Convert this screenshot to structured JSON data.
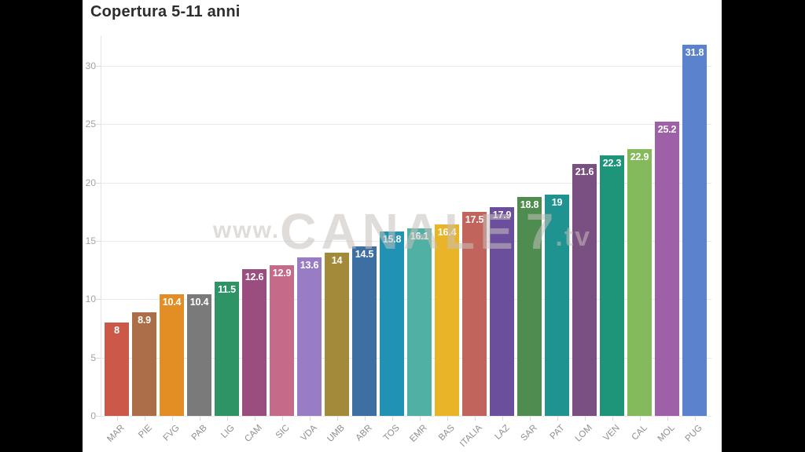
{
  "title": "Copertura 5-11 anni",
  "watermark": {
    "prefix": "www.",
    "main": "CANALE",
    "seven": "7",
    "suffix": ".tv"
  },
  "palette": {
    "background": "#000000",
    "panel": "#ffffff",
    "grid": "#e9e9e9",
    "axis_text": "#a3a3a3",
    "category_text": "#8f8f8f",
    "title_text": "#2d2d2d",
    "value_label_text": "#ffffff",
    "watermark_text": "#c4c0bc"
  },
  "chart_data": {
    "type": "bar",
    "title": "Copertura 5-11 anni",
    "xlabel": "",
    "ylabel": "",
    "ylim": [
      0,
      32
    ],
    "yticks": [
      0,
      5,
      10,
      15,
      20,
      25,
      30
    ],
    "grid": true,
    "legend": false,
    "value_label_position": "inside-top",
    "categories": [
      "MAR",
      "PIE",
      "FVG",
      "PAB",
      "LIG",
      "CAM",
      "SIC",
      "VDA",
      "UMB",
      "ABR",
      "TOS",
      "EMR",
      "BAS",
      "ITALIA",
      "LAZ",
      "SAR",
      "PAT",
      "LOM",
      "VEN",
      "CAL",
      "MOL",
      "PUG"
    ],
    "values": [
      8,
      8.9,
      10.4,
      10.4,
      11.5,
      12.6,
      12.9,
      13.6,
      14,
      14.5,
      15.8,
      16.1,
      16.4,
      17.5,
      17.9,
      18.8,
      19,
      21.6,
      22.3,
      22.9,
      25.2,
      31.8
    ],
    "bar_colors": [
      "#cc584a",
      "#ab6e49",
      "#e38d25",
      "#7a7a7a",
      "#2e9465",
      "#9a4e80",
      "#c56a89",
      "#987cc4",
      "#a38a3a",
      "#3d6fa3",
      "#2092b4",
      "#50b0a4",
      "#eab429",
      "#c1655c",
      "#6b4f9c",
      "#4f8c50",
      "#1f938f",
      "#7a4f82",
      "#1e9578",
      "#84ba5c",
      "#9e60a6",
      "#5b82cc"
    ]
  }
}
